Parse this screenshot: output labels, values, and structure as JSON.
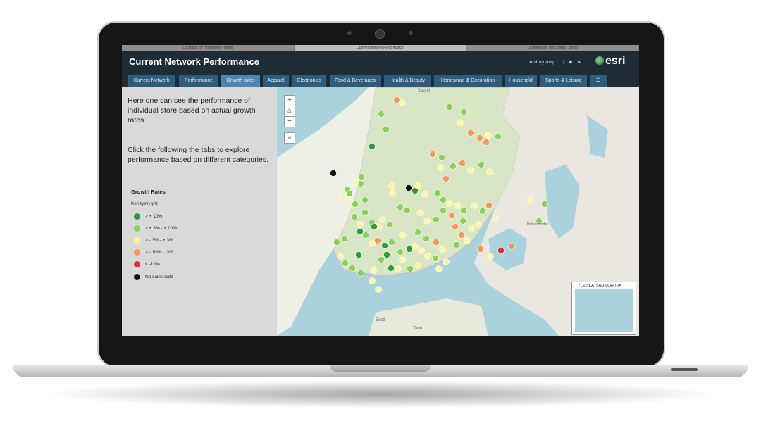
{
  "browser_tabs": [
    "Locations for new stores - demo",
    "Current Network Performance",
    "Locations for new stores - demo"
  ],
  "header": {
    "title": "Current Network Performance",
    "story_label": "A story map",
    "share_icons": "f ♥ ⚭",
    "brand": "esri"
  },
  "tabs": [
    {
      "label": "Current Network",
      "active": false
    },
    {
      "label": "Performance",
      "active": false
    },
    {
      "label": "Growth rates",
      "active": true
    },
    {
      "label": "Apparel",
      "active": false
    },
    {
      "label": "Electronics",
      "active": false
    },
    {
      "label": "Food & Beverages",
      "active": false
    },
    {
      "label": "Health & Beauty",
      "active": false
    },
    {
      "label": "Homeware & Decoration",
      "active": false
    },
    {
      "label": "Household",
      "active": false
    },
    {
      "label": "Sports & Leisure",
      "active": false
    }
  ],
  "panel": {
    "intro": "Here one can see the performance of individual store based on actual growth rates.",
    "intro2": "Click the following the tabs to explore performance based on different categories.",
    "legend_title": "Growth Rates",
    "legend_subtitle": "Kehitys% yht",
    "legend": [
      {
        "label": "> + 10%",
        "color": "#2e9a3e"
      },
      {
        "label": "> + 3% - + 10%",
        "color": "#8ecf5a"
      },
      {
        "label": "> - 3% - + 3%",
        "color": "#fbf6a3"
      },
      {
        "label": "> - 10% - -3%",
        "color": "#f59a55"
      },
      {
        "label": "< -10%",
        "color": "#d9302a"
      },
      {
        "label": "No sales data",
        "color": "#111111"
      }
    ]
  },
  "map": {
    "zoom_in": "+",
    "home": "⌂",
    "zoom_out": "−",
    "search": "⌕",
    "overview_label": "YLEISKATSAUSKARTTA",
    "place_labels": [
      "Suomi",
      "Tartu",
      "Eesti",
      "Petrozavodsk"
    ]
  }
}
